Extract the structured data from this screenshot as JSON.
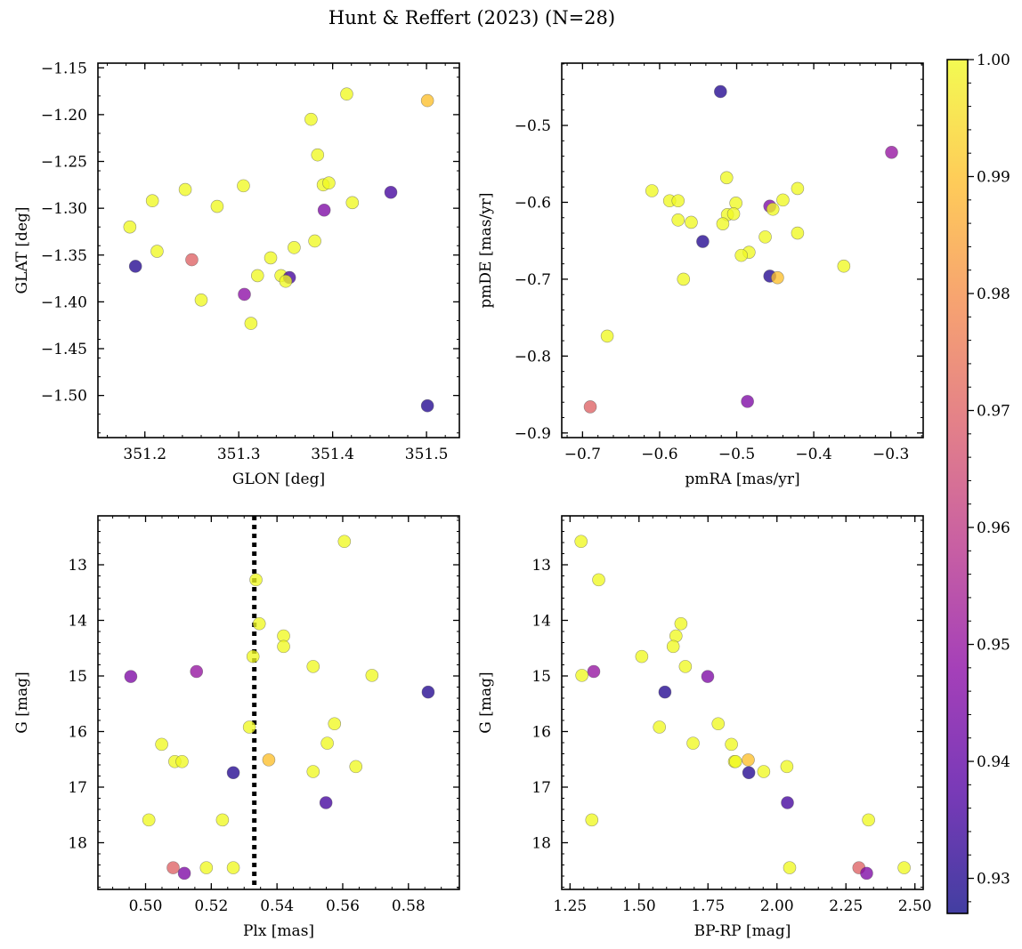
{
  "figure_title": "Hunt & Reffert (2023) (N=28)",
  "colorbar": {
    "min": 0.927,
    "max": 1.0,
    "ticks": [
      "0.93",
      "0.94",
      "0.95",
      "0.96",
      "0.97",
      "0.98",
      "0.99",
      "1.00"
    ],
    "tick_values": [
      0.93,
      0.94,
      0.95,
      0.96,
      0.97,
      0.98,
      0.99,
      1.0
    ],
    "colormap": [
      "#0d0887",
      "#5302a3",
      "#8b0aa5",
      "#b83289",
      "#db5c68",
      "#f48849",
      "#febd2a",
      "#f0f921"
    ],
    "alpha": 0.78
  },
  "chart_data": [
    {
      "type": "scatter",
      "xlabel": "GLON [deg]",
      "ylabel": "GLAT [deg]",
      "xlim": [
        351.15,
        351.535
      ],
      "ylim": [
        -1.545,
        -1.145
      ],
      "xticks": [
        351.2,
        351.3,
        351.4,
        351.5
      ],
      "xtick_labels": [
        "351.2",
        "351.3",
        "351.4",
        "351.5"
      ],
      "yticks": [
        -1.15,
        -1.2,
        -1.25,
        -1.3,
        -1.35,
        -1.4,
        -1.45,
        -1.5
      ],
      "ytick_labels": [
        "−1.15",
        "−1.20",
        "−1.25",
        "−1.30",
        "−1.35",
        "−1.40",
        "−1.45",
        "−1.50"
      ],
      "y_inverted": false,
      "vline": null,
      "points": [
        {
          "x": 351.415,
          "y": -1.178,
          "c": 1.0
        },
        {
          "x": 351.501,
          "y": -1.185,
          "c": 0.99
        },
        {
          "x": 351.377,
          "y": -1.205,
          "c": 1.0
        },
        {
          "x": 351.384,
          "y": -1.243,
          "c": 1.0
        },
        {
          "x": 351.39,
          "y": -1.275,
          "c": 1.0
        },
        {
          "x": 351.396,
          "y": -1.273,
          "c": 1.0
        },
        {
          "x": 351.305,
          "y": -1.276,
          "c": 1.0
        },
        {
          "x": 351.243,
          "y": -1.28,
          "c": 1.0
        },
        {
          "x": 351.462,
          "y": -1.283,
          "c": 0.935
        },
        {
          "x": 351.208,
          "y": -1.292,
          "c": 1.0
        },
        {
          "x": 351.421,
          "y": -1.294,
          "c": 1.0
        },
        {
          "x": 351.277,
          "y": -1.298,
          "c": 1.0
        },
        {
          "x": 351.391,
          "y": -1.302,
          "c": 0.945
        },
        {
          "x": 351.184,
          "y": -1.32,
          "c": 1.0
        },
        {
          "x": 351.381,
          "y": -1.335,
          "c": 1.0
        },
        {
          "x": 351.359,
          "y": -1.342,
          "c": 1.0
        },
        {
          "x": 351.213,
          "y": -1.346,
          "c": 1.0
        },
        {
          "x": 351.334,
          "y": -1.353,
          "c": 1.0
        },
        {
          "x": 351.25,
          "y": -1.355,
          "c": 0.97
        },
        {
          "x": 351.19,
          "y": -1.362,
          "c": 0.93
        },
        {
          "x": 351.32,
          "y": -1.372,
          "c": 1.0
        },
        {
          "x": 351.345,
          "y": -1.372,
          "c": 1.0
        },
        {
          "x": 351.354,
          "y": -1.374,
          "c": 0.935
        },
        {
          "x": 351.35,
          "y": -1.378,
          "c": 1.0
        },
        {
          "x": 351.306,
          "y": -1.392,
          "c": 0.948
        },
        {
          "x": 351.26,
          "y": -1.398,
          "c": 1.0
        },
        {
          "x": 351.313,
          "y": -1.423,
          "c": 1.0
        },
        {
          "x": 351.501,
          "y": -1.511,
          "c": 0.93
        }
      ]
    },
    {
      "type": "scatter",
      "xlabel": "pmRA [mas/yr]",
      "ylabel": "pmDE [mas/yr]",
      "xlim": [
        -0.727,
        -0.258
      ],
      "ylim": [
        -0.906,
        -0.419
      ],
      "xticks": [
        -0.7,
        -0.6,
        -0.5,
        -0.4,
        -0.3
      ],
      "xtick_labels": [
        "−0.7",
        "−0.6",
        "−0.5",
        "−0.4",
        "−0.3"
      ],
      "yticks": [
        -0.5,
        -0.6,
        -0.7,
        -0.8,
        -0.9
      ],
      "ytick_labels": [
        "−0.5",
        "−0.6",
        "−0.7",
        "−0.8",
        "−0.9"
      ],
      "y_inverted": false,
      "vline": null,
      "points": [
        {
          "x": -0.521,
          "y": -0.456,
          "c": 0.93
        },
        {
          "x": -0.299,
          "y": -0.535,
          "c": 0.95
        },
        {
          "x": -0.513,
          "y": -0.568,
          "c": 1.0
        },
        {
          "x": -0.421,
          "y": -0.582,
          "c": 1.0
        },
        {
          "x": -0.61,
          "y": -0.585,
          "c": 1.0
        },
        {
          "x": -0.44,
          "y": -0.597,
          "c": 1.0
        },
        {
          "x": -0.587,
          "y": -0.598,
          "c": 1.0
        },
        {
          "x": -0.576,
          "y": -0.598,
          "c": 1.0
        },
        {
          "x": -0.501,
          "y": -0.601,
          "c": 1.0
        },
        {
          "x": -0.457,
          "y": -0.605,
          "c": 0.945
        },
        {
          "x": -0.453,
          "y": -0.609,
          "c": 1.0
        },
        {
          "x": -0.512,
          "y": -0.616,
          "c": 1.0
        },
        {
          "x": -0.504,
          "y": -0.615,
          "c": 1.0
        },
        {
          "x": -0.576,
          "y": -0.623,
          "c": 1.0
        },
        {
          "x": -0.559,
          "y": -0.626,
          "c": 1.0
        },
        {
          "x": -0.518,
          "y": -0.628,
          "c": 1.0
        },
        {
          "x": -0.421,
          "y": -0.64,
          "c": 1.0
        },
        {
          "x": -0.463,
          "y": -0.645,
          "c": 1.0
        },
        {
          "x": -0.544,
          "y": -0.651,
          "c": 0.93
        },
        {
          "x": -0.484,
          "y": -0.665,
          "c": 1.0
        },
        {
          "x": -0.494,
          "y": -0.669,
          "c": 1.0
        },
        {
          "x": -0.361,
          "y": -0.683,
          "c": 1.0
        },
        {
          "x": -0.457,
          "y": -0.696,
          "c": 0.93
        },
        {
          "x": -0.447,
          "y": -0.698,
          "c": 0.99
        },
        {
          "x": -0.569,
          "y": -0.7,
          "c": 1.0
        },
        {
          "x": -0.668,
          "y": -0.774,
          "c": 1.0
        },
        {
          "x": -0.486,
          "y": -0.859,
          "c": 0.945
        },
        {
          "x": -0.69,
          "y": -0.866,
          "c": 0.97
        }
      ]
    },
    {
      "type": "scatter",
      "xlabel": "Plx [mas]",
      "ylabel": "G [mag]",
      "xlim": [
        0.4855,
        0.5955
      ],
      "ylim": [
        12.12,
        18.84
      ],
      "xticks": [
        0.5,
        0.52,
        0.54,
        0.56,
        0.58
      ],
      "xtick_labels": [
        "0.50",
        "0.52",
        "0.54",
        "0.56",
        "0.58"
      ],
      "yticks": [
        13,
        14,
        15,
        16,
        17,
        18
      ],
      "ytick_labels": [
        "13",
        "14",
        "15",
        "16",
        "17",
        "18"
      ],
      "y_inverted": true,
      "vline": 0.5331,
      "points": [
        {
          "x": 0.5605,
          "y": 12.58,
          "c": 1.0
        },
        {
          "x": 0.5336,
          "y": 13.27,
          "c": 1.0
        },
        {
          "x": 0.5346,
          "y": 14.06,
          "c": 1.0
        },
        {
          "x": 0.542,
          "y": 14.28,
          "c": 1.0
        },
        {
          "x": 0.542,
          "y": 14.47,
          "c": 1.0
        },
        {
          "x": 0.5327,
          "y": 14.65,
          "c": 1.0
        },
        {
          "x": 0.551,
          "y": 14.83,
          "c": 1.0
        },
        {
          "x": 0.5155,
          "y": 14.92,
          "c": 0.95
        },
        {
          "x": 0.5689,
          "y": 14.99,
          "c": 1.0
        },
        {
          "x": 0.4955,
          "y": 15.01,
          "c": 0.945
        },
        {
          "x": 0.586,
          "y": 15.29,
          "c": 0.93
        },
        {
          "x": 0.5575,
          "y": 15.86,
          "c": 1.0
        },
        {
          "x": 0.5316,
          "y": 15.92,
          "c": 1.0
        },
        {
          "x": 0.5553,
          "y": 16.21,
          "c": 1.0
        },
        {
          "x": 0.5049,
          "y": 16.23,
          "c": 1.0
        },
        {
          "x": 0.5375,
          "y": 16.51,
          "c": 0.99
        },
        {
          "x": 0.5089,
          "y": 16.54,
          "c": 1.0
        },
        {
          "x": 0.5111,
          "y": 16.54,
          "c": 1.0
        },
        {
          "x": 0.564,
          "y": 16.63,
          "c": 1.0
        },
        {
          "x": 0.551,
          "y": 16.72,
          "c": 1.0
        },
        {
          "x": 0.5267,
          "y": 16.74,
          "c": 0.93
        },
        {
          "x": 0.5549,
          "y": 17.28,
          "c": 0.935
        },
        {
          "x": 0.501,
          "y": 17.59,
          "c": 1.0
        },
        {
          "x": 0.5234,
          "y": 17.59,
          "c": 1.0
        },
        {
          "x": 0.5084,
          "y": 18.45,
          "c": 0.97
        },
        {
          "x": 0.5185,
          "y": 18.45,
          "c": 1.0
        },
        {
          "x": 0.5267,
          "y": 18.45,
          "c": 1.0
        },
        {
          "x": 0.5118,
          "y": 18.55,
          "c": 0.945
        }
      ]
    },
    {
      "type": "scatter",
      "xlabel": "BP-RP [mag]",
      "ylabel": "G [mag]",
      "xlim": [
        1.22,
        2.53
      ],
      "ylim": [
        12.12,
        18.84
      ],
      "xticks": [
        1.25,
        1.5,
        1.75,
        2.0,
        2.25,
        2.5
      ],
      "xtick_labels": [
        "1.25",
        "1.50",
        "1.75",
        "2.00",
        "2.25",
        "2.50"
      ],
      "yticks": [
        13,
        14,
        15,
        16,
        17,
        18
      ],
      "ytick_labels": [
        "13",
        "14",
        "15",
        "16",
        "17",
        "18"
      ],
      "y_inverted": true,
      "vline": null,
      "points": [
        {
          "x": 1.29,
          "y": 12.58,
          "c": 1.0
        },
        {
          "x": 1.354,
          "y": 13.27,
          "c": 1.0
        },
        {
          "x": 1.652,
          "y": 14.06,
          "c": 1.0
        },
        {
          "x": 1.634,
          "y": 14.28,
          "c": 1.0
        },
        {
          "x": 1.624,
          "y": 14.47,
          "c": 1.0
        },
        {
          "x": 1.51,
          "y": 14.65,
          "c": 1.0
        },
        {
          "x": 1.668,
          "y": 14.83,
          "c": 1.0
        },
        {
          "x": 1.336,
          "y": 14.92,
          "c": 0.95
        },
        {
          "x": 1.293,
          "y": 14.99,
          "c": 1.0
        },
        {
          "x": 1.749,
          "y": 15.01,
          "c": 0.945
        },
        {
          "x": 1.594,
          "y": 15.29,
          "c": 0.93
        },
        {
          "x": 1.787,
          "y": 15.86,
          "c": 1.0
        },
        {
          "x": 1.574,
          "y": 15.92,
          "c": 1.0
        },
        {
          "x": 1.696,
          "y": 16.21,
          "c": 1.0
        },
        {
          "x": 1.835,
          "y": 16.23,
          "c": 1.0
        },
        {
          "x": 1.896,
          "y": 16.51,
          "c": 0.99
        },
        {
          "x": 1.846,
          "y": 16.54,
          "c": 1.0
        },
        {
          "x": 1.85,
          "y": 16.54,
          "c": 1.0
        },
        {
          "x": 2.036,
          "y": 16.63,
          "c": 1.0
        },
        {
          "x": 1.952,
          "y": 16.72,
          "c": 1.0
        },
        {
          "x": 1.898,
          "y": 16.74,
          "c": 0.93
        },
        {
          "x": 2.038,
          "y": 17.28,
          "c": 0.935
        },
        {
          "x": 1.329,
          "y": 17.59,
          "c": 1.0
        },
        {
          "x": 2.332,
          "y": 17.59,
          "c": 1.0
        },
        {
          "x": 2.297,
          "y": 18.45,
          "c": 0.97
        },
        {
          "x": 2.046,
          "y": 18.45,
          "c": 1.0
        },
        {
          "x": 2.461,
          "y": 18.45,
          "c": 1.0
        },
        {
          "x": 2.325,
          "y": 18.55,
          "c": 0.945
        }
      ]
    }
  ]
}
